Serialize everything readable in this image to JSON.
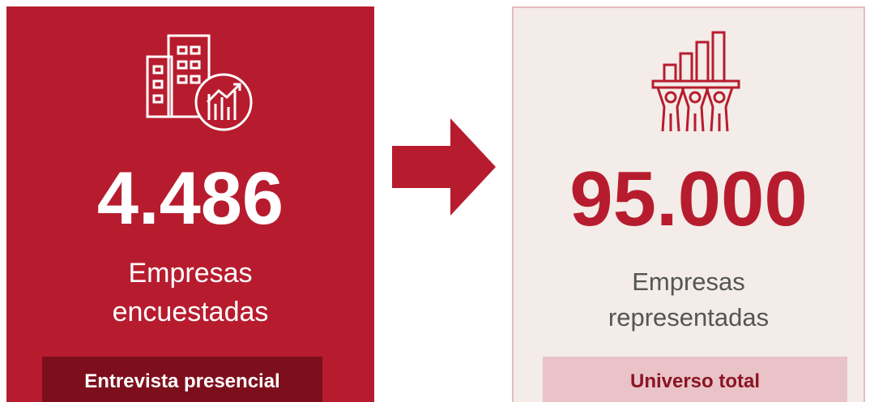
{
  "cards": [
    {
      "value": "4.486",
      "label_lines": [
        "Empresas",
        "encuestadas"
      ],
      "tag": "Entrevista presencial"
    },
    {
      "value": "95.000",
      "label_lines": [
        "Empresas",
        "representadas"
      ],
      "tag": "Universo total"
    }
  ]
}
